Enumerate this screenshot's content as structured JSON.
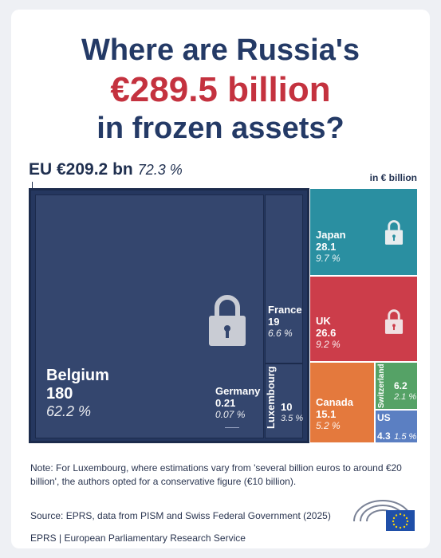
{
  "title": {
    "line1": "Where are Russia's",
    "line2": "€289.5 billion",
    "line3": "in frozen assets?"
  },
  "eu": {
    "label": "EU €209.2 bn",
    "pct": "72.3 %"
  },
  "unit": "in € billion",
  "chart_data": {
    "type": "treemap",
    "total": 289.5,
    "unit": "€ billion",
    "items": [
      {
        "name": "Belgium",
        "value": 180,
        "pct": "62.2 %",
        "group": "EU",
        "color": "#25375f"
      },
      {
        "name": "Germany",
        "value": 0.21,
        "pct": "0.07 %",
        "group": "EU",
        "color": "#25375f"
      },
      {
        "name": "France",
        "value": 19,
        "pct": "6.6 %",
        "group": "EU",
        "color": "#25375f"
      },
      {
        "name": "Luxembourg",
        "value": 10,
        "pct": "3.5 %",
        "group": "EU",
        "color": "#25375f"
      },
      {
        "name": "Japan",
        "value": 28.1,
        "pct": "9.7 %",
        "group": "",
        "color": "#2a8fa1"
      },
      {
        "name": "UK",
        "value": 26.6,
        "pct": "9.2 %",
        "group": "",
        "color": "#cc3d4a"
      },
      {
        "name": "Canada",
        "value": 15.1,
        "pct": "5.2 %",
        "group": "",
        "color": "#e4793d"
      },
      {
        "name": "Switzerland",
        "value": 6.2,
        "pct": "2.1 %",
        "group": "",
        "color": "#55a266"
      },
      {
        "name": "US",
        "value": 4.3,
        "pct": "1.5 %",
        "group": "",
        "color": "#5b7fc2"
      }
    ]
  },
  "labels": {
    "belgium": {
      "name": "Belgium",
      "val": "180",
      "pct": "62.2 %"
    },
    "germany": {
      "name": "Germany",
      "val": "0.21",
      "pct": "0.07 %"
    },
    "france": {
      "name": "France",
      "val": "19",
      "pct": "6.6 %"
    },
    "luxembourg": {
      "name": "Luxembourg",
      "val": "10",
      "pct": "3.5 %"
    },
    "japan": {
      "name": "Japan",
      "val": "28.1",
      "pct": "9.7 %"
    },
    "uk": {
      "name": "UK",
      "val": "26.6",
      "pct": "9.2 %"
    },
    "canada": {
      "name": "Canada",
      "val": "15.1",
      "pct": "5.2 %"
    },
    "switzerland": {
      "name": "Switzerland",
      "val": "6.2",
      "pct": "2.1 %"
    },
    "us": {
      "name": "US",
      "val": "4.3",
      "pct": "1.5 %"
    }
  },
  "note": "Note: For Luxembourg, where estimations vary from 'several billion euros to around €20 billion', the authors opted for a conservative figure (€10 billion).",
  "source": "Source: EPRS, data from PISM and Swiss Federal Government (2025)",
  "footer": "EPRS | European Parliamentary Research Service",
  "colors": {
    "eu_dark": "#25375f",
    "title_red": "#c4323f",
    "title_navy": "#243a66"
  },
  "icons": [
    "lock-icon",
    "parliament-logo-icon",
    "eu-flag-icon"
  ]
}
